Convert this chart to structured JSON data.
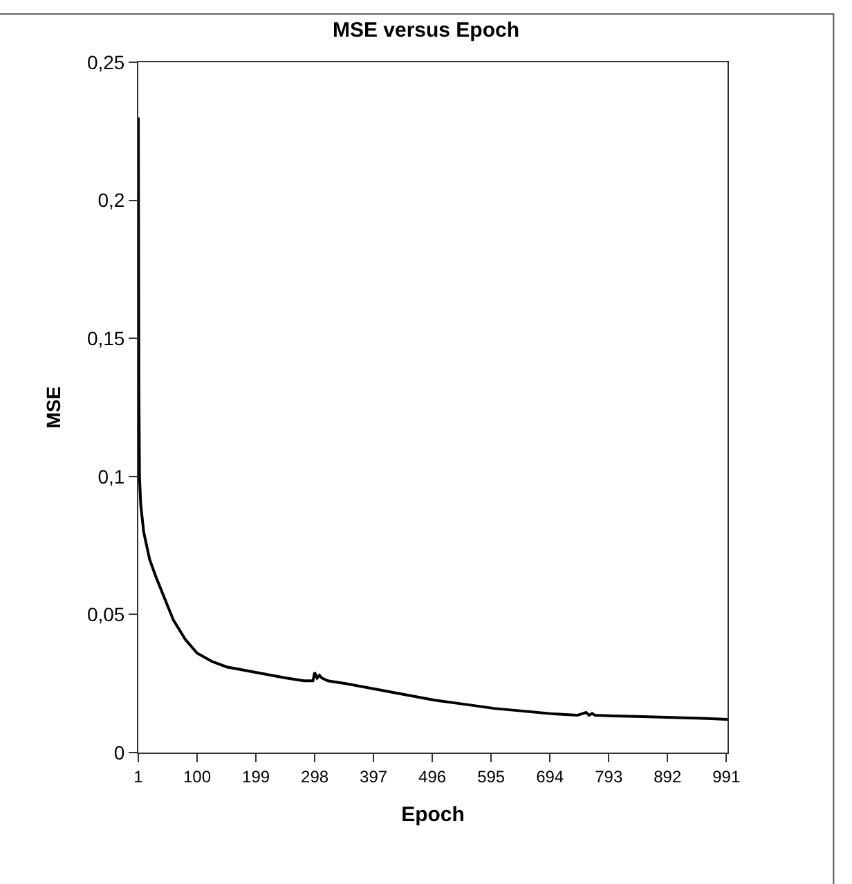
{
  "chart_data": {
    "type": "line",
    "title": "MSE versus Epoch",
    "xlabel": "Epoch",
    "ylabel": "MSE",
    "x": [
      1,
      2,
      3,
      5,
      10,
      20,
      30,
      45,
      60,
      80,
      100,
      125,
      150,
      200,
      250,
      280,
      295,
      298,
      302,
      306,
      310,
      320,
      350,
      400,
      450,
      500,
      550,
      600,
      650,
      700,
      740,
      755,
      760,
      765,
      770,
      800,
      850,
      900,
      950,
      993
    ],
    "series": [
      {
        "color": "#000000",
        "values": [
          0.23,
          0.13,
          0.1,
          0.09,
          0.08,
          0.07,
          0.064,
          0.056,
          0.048,
          0.041,
          0.036,
          0.033,
          0.031,
          0.029,
          0.027,
          0.026,
          0.026,
          0.029,
          0.027,
          0.028,
          0.027,
          0.026,
          0.025,
          0.023,
          0.021,
          0.019,
          0.0175,
          0.016,
          0.015,
          0.014,
          0.0135,
          0.0145,
          0.0135,
          0.0142,
          0.0135,
          0.0133,
          0.013,
          0.0127,
          0.0124,
          0.012
        ]
      }
    ],
    "xlim": [
      1,
      993
    ],
    "xticks": [
      1,
      100,
      199,
      298,
      397,
      496,
      595,
      694,
      793,
      892,
      991
    ],
    "ylim": [
      0,
      0.25
    ],
    "yticks": [
      {
        "value": 0,
        "label": "0"
      },
      {
        "value": 0.05,
        "label": "0,05"
      },
      {
        "value": 0.1,
        "label": "0,1"
      },
      {
        "value": 0.15,
        "label": "0,15"
      },
      {
        "value": 0.2,
        "label": "0,2"
      },
      {
        "value": 0.25,
        "label": "0,25"
      }
    ],
    "marker": "none",
    "line_style": "solid"
  }
}
